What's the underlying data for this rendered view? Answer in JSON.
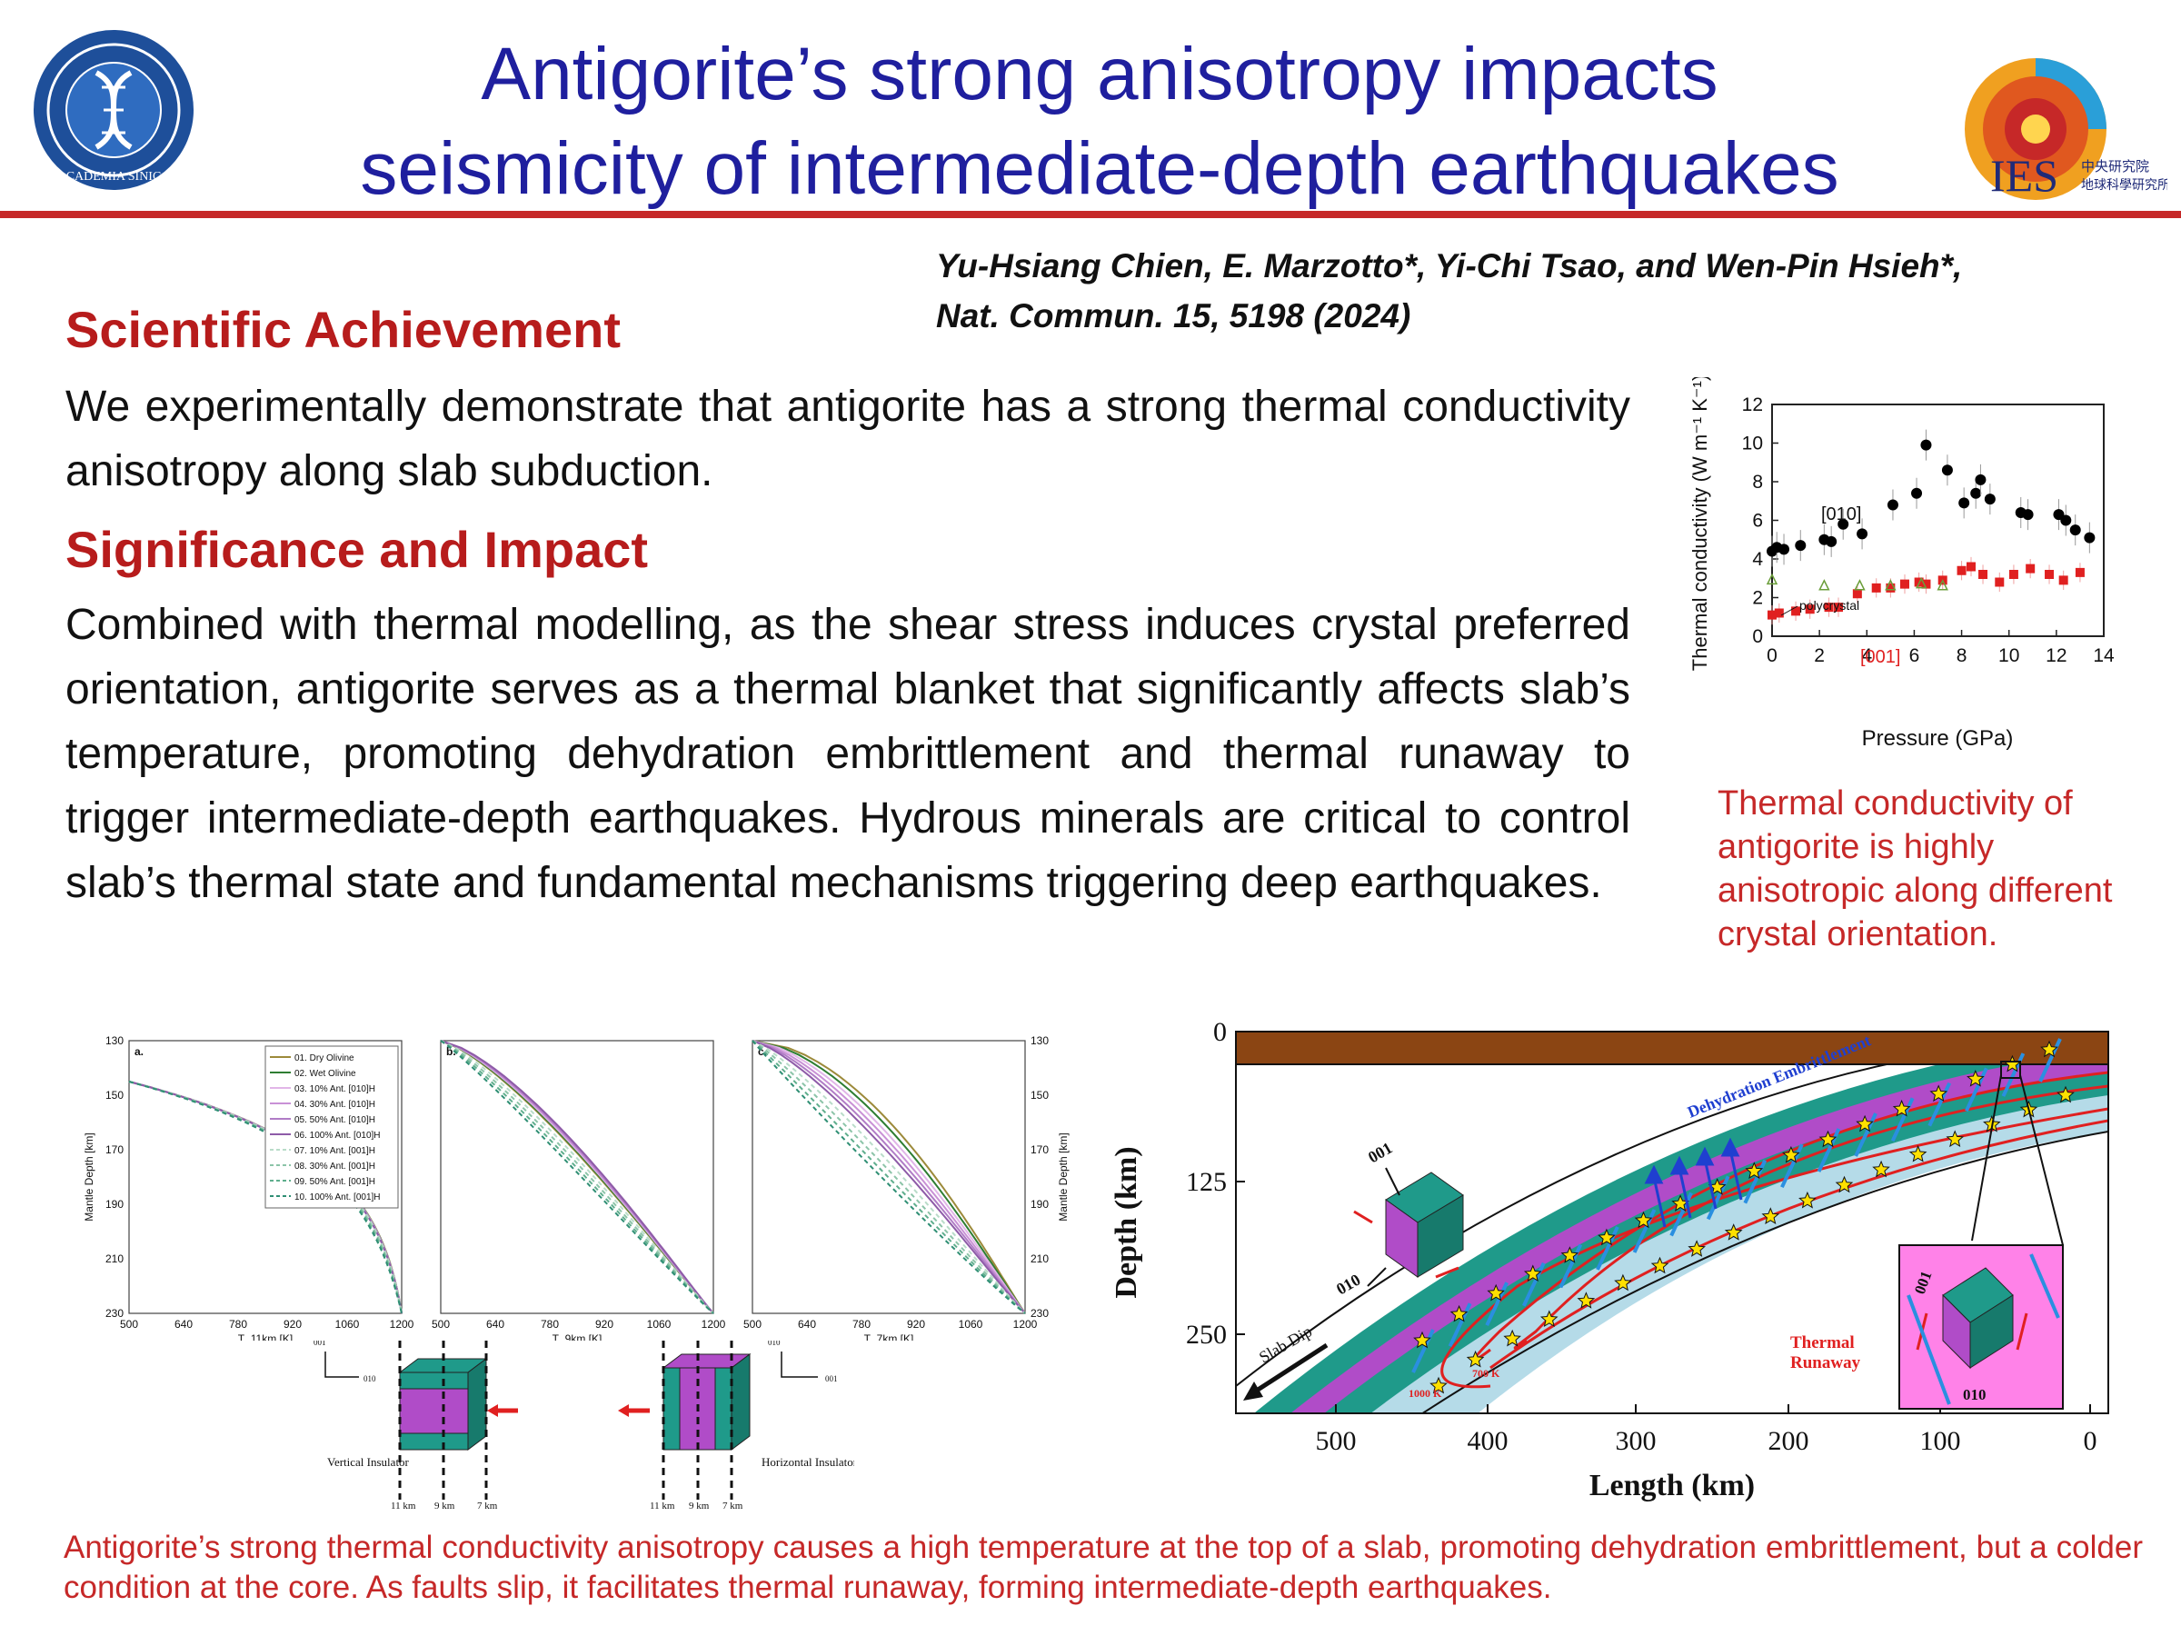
{
  "header": {
    "title_line1": "Antigorite’s strong anisotropy impacts",
    "title_line2": "seismicity of intermediate-depth earthquakes",
    "logo_left_text": "ACADEMIA SINICA",
    "logo_right_text": "IES",
    "logo_right_cjk_1": "中央研究院",
    "logo_right_cjk_2": "地球科學研究所"
  },
  "citation": {
    "authors": "Yu-Hsiang Chien, E. Marzotto*, Yi-Chi Tsao, and Wen-Pin Hsieh*,",
    "journal": "Nat. Commun.  15, 5198  (2024)"
  },
  "achievement": {
    "heading": "Scientific Achievement",
    "text": "We experimentally demonstrate that antigorite has a strong thermal conductivity anisotropy along slab subduction."
  },
  "impact": {
    "heading": "Significance and Impact",
    "text": "Combined with thermal modelling, as the shear stress induces crystal preferred orientation, antigorite serves as a thermal blanket that significantly affects slab’s temperature, promoting dehydration embrittlement and thermal runaway to trigger intermediate-depth earthquakes. Hydrous minerals are critical to control slab’s thermal state and fundamental mechanisms triggering deep earthquakes."
  },
  "chart_data": [
    {
      "type": "scatter",
      "xlabel": "Pressure (GPa)",
      "ylabel": "Thermal conductivity (W m⁻¹ K⁻¹)",
      "xlim": [
        0,
        14
      ],
      "ylim": [
        0,
        12
      ],
      "xticks": [
        "0",
        "2",
        "4",
        "6",
        "8",
        "10",
        "12",
        "14"
      ],
      "yticks": [
        "0",
        "2",
        "4",
        "6",
        "8",
        "10",
        "12"
      ],
      "colors": {
        "s010": "#000000",
        "s001": "#e02020",
        "poly": "#6b9e3a"
      },
      "series": [
        {
          "name": "[010]",
          "points": [
            [
              0,
              4.4
            ],
            [
              0.2,
              4.6
            ],
            [
              0.5,
              4.5
            ],
            [
              1.2,
              4.7
            ],
            [
              2.2,
              5.0
            ],
            [
              2.5,
              4.9
            ],
            [
              3.0,
              5.8
            ],
            [
              3.8,
              5.3
            ],
            [
              5.1,
              6.8
            ],
            [
              6.1,
              7.4
            ],
            [
              6.5,
              9.9
            ],
            [
              7.4,
              8.6
            ],
            [
              8.1,
              6.9
            ],
            [
              8.6,
              7.4
            ],
            [
              8.8,
              8.1
            ],
            [
              9.2,
              7.1
            ],
            [
              10.5,
              6.4
            ],
            [
              10.8,
              6.3
            ],
            [
              12.1,
              6.3
            ],
            [
              12.4,
              6.0
            ],
            [
              12.8,
              5.5
            ],
            [
              13.4,
              5.1
            ]
          ]
        },
        {
          "name": "[001]",
          "points": [
            [
              0,
              1.1
            ],
            [
              0.3,
              1.2
            ],
            [
              1.0,
              1.3
            ],
            [
              1.6,
              1.4
            ],
            [
              2.4,
              1.5
            ],
            [
              2.8,
              1.5
            ],
            [
              3.6,
              2.2
            ],
            [
              4.4,
              2.5
            ],
            [
              5.0,
              2.5
            ],
            [
              5.6,
              2.7
            ],
            [
              6.2,
              2.8
            ],
            [
              6.5,
              2.7
            ],
            [
              7.2,
              2.9
            ],
            [
              8.0,
              3.4
            ],
            [
              8.4,
              3.6
            ],
            [
              8.9,
              3.2
            ],
            [
              9.6,
              2.8
            ],
            [
              10.2,
              3.2
            ],
            [
              10.9,
              3.5
            ],
            [
              11.7,
              3.2
            ],
            [
              12.3,
              2.9
            ],
            [
              13.0,
              3.3
            ]
          ]
        },
        {
          "name": "polycrystal",
          "points": [
            [
              0,
              2.9
            ],
            [
              2.2,
              2.6
            ],
            [
              3.7,
              2.6
            ],
            [
              5.0,
              2.6
            ],
            [
              6.3,
              2.7
            ],
            [
              7.2,
              2.6
            ]
          ]
        }
      ],
      "labels": {
        "s010": "[010]",
        "s001": "[001]",
        "poly": "polycrystal"
      }
    },
    {
      "type": "line",
      "panels": [
        "a.",
        "b.",
        "c."
      ],
      "xlabels": [
        "T_11km [K]",
        "T_9km [K]",
        "T_7km [K]"
      ],
      "xticks": [
        "500",
        "640",
        "780",
        "920",
        "1060",
        "1200"
      ],
      "ylabel": "Mantle Depth [km]",
      "yticks": [
        "130",
        "150",
        "170",
        "190",
        "210",
        "230"
      ],
      "xlim": [
        500,
        1200
      ],
      "ylim": [
        130,
        230
      ],
      "legend": [
        "01. Dry Olivine",
        "02. Wet Olivine",
        "03. 10% Ant. [010]H",
        "04. 30% Ant. [010]H",
        "05. 50% Ant. [010]H",
        "06. 100% Ant. [010]H",
        "07. 10% Ant. [001]H",
        "08. 30% Ant. [001]H",
        "09. 50% Ant. [001]H",
        "10. 100% Ant. [001]H"
      ],
      "legend_colors": [
        "#9c8a3a",
        "#2e7d32",
        "#e1b6e8",
        "#c991d6",
        "#b07cc6",
        "#8e5ba8",
        "#b9dcc9",
        "#8cc4a8",
        "#5fae8d",
        "#2f8f74"
      ],
      "legend_dashed": [
        false,
        false,
        false,
        false,
        false,
        false,
        true,
        true,
        true,
        true
      ]
    }
  ],
  "cartoon": {
    "left_axis_010": "010",
    "left_axis_001": "001",
    "right_axis_010": "010",
    "right_axis_001": "001",
    "vertical_insulator": "Vertical Insulator",
    "horizontal_insulator": "Horizontal Insulator",
    "depths": [
      "11 km",
      "9 km",
      "7 km"
    ]
  },
  "slab": {
    "ylabel": "Depth (km)",
    "xlabel": "Length (km)",
    "yticks": [
      "0",
      "125",
      "250"
    ],
    "xticks": [
      "500",
      "400",
      "300",
      "200",
      "100",
      "0"
    ],
    "dehydration": "Dehydration Embrittlement",
    "slab_dip": "Slab Dip",
    "thermal_runaway": "Thermal Runaway",
    "iso_700": "700 K",
    "iso_1000": "1000 K",
    "crystal_001": "001",
    "crystal_010": "010"
  },
  "captions": {
    "tc": "Thermal conductivity of antigorite is highly anisotropic along different crystal orientation.",
    "bottom": "Antigorite’s strong thermal conductivity anisotropy causes a high temperature at the top of a slab, promoting dehydration embrittlement, but a colder condition at the core. As faults slip, it facilitates thermal runaway, forming intermediate-depth earthquakes."
  }
}
